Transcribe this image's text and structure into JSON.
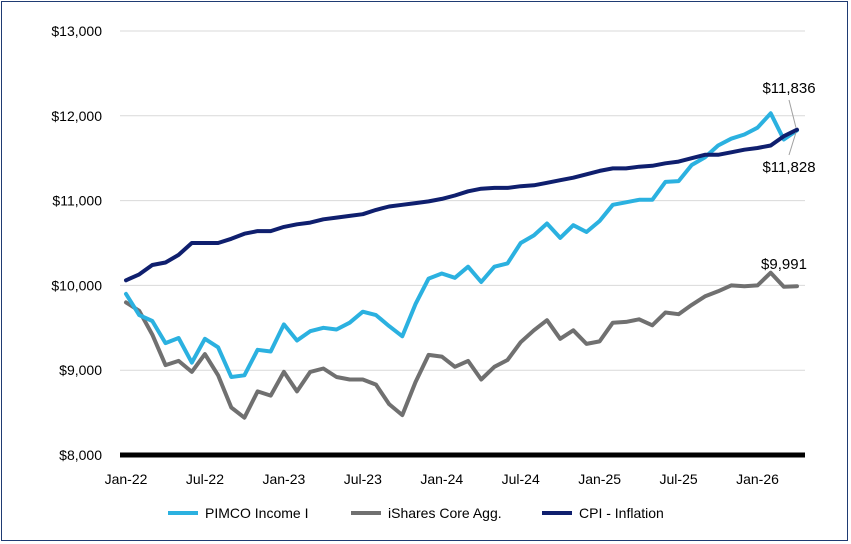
{
  "chart_data": {
    "type": "line",
    "x": [
      "Jan-22",
      "Feb-22",
      "Mar-22",
      "Apr-22",
      "May-22",
      "Jun-22",
      "Jul-22",
      "Aug-22",
      "Sep-22",
      "Oct-22",
      "Nov-22",
      "Dec-22",
      "Jan-23",
      "Feb-23",
      "Mar-23",
      "Apr-23",
      "May-23",
      "Jun-23",
      "Jul-23",
      "Aug-23",
      "Sep-23",
      "Oct-23",
      "Nov-23",
      "Dec-23",
      "Jan-24",
      "Feb-24",
      "Mar-24",
      "Apr-24",
      "May-24",
      "Jun-24",
      "Jul-24",
      "Aug-24",
      "Sep-24",
      "Oct-24",
      "Nov-24",
      "Dec-24",
      "Jan-25",
      "Feb-25",
      "Mar-25",
      "Apr-25",
      "May-25",
      "Jun-25",
      "Jul-25",
      "Aug-25",
      "Sep-25",
      "Oct-25",
      "Nov-25",
      "Dec-25",
      "Jan-26",
      "Feb-26",
      "Mar-26",
      "Apr-26"
    ],
    "xtick_labels": [
      "Jan-22",
      "Jul-22",
      "Jan-23",
      "Jul-23",
      "Jan-24",
      "Jul-24",
      "Jan-25",
      "Jul-25",
      "Jan-26"
    ],
    "ytick_labels": [
      "$8,000",
      "$9,000",
      "$10,000",
      "$11,000",
      "$12,000",
      "$13,000"
    ],
    "yticks": [
      8000,
      9000,
      10000,
      11000,
      12000,
      13000
    ],
    "ylim": [
      8000,
      13000
    ],
    "grid": "horizontal",
    "legend_position": "bottom",
    "series": [
      {
        "name": "PIMCO Income I",
        "color": "#2bb1e0",
        "values": [
          9900,
          9650,
          9580,
          9320,
          9380,
          9090,
          9370,
          9270,
          8920,
          8940,
          9240,
          9220,
          9540,
          9350,
          9460,
          9500,
          9480,
          9560,
          9690,
          9650,
          9520,
          9400,
          9780,
          10080,
          10140,
          10090,
          10220,
          10040,
          10220,
          10260,
          10500,
          10590,
          10730,
          10560,
          10710,
          10630,
          10760,
          10950,
          10980,
          11010,
          11010,
          11220,
          11230,
          11420,
          11510,
          11650,
          11730,
          11780,
          11860,
          12030,
          11720,
          11828
        ]
      },
      {
        "name": "iShares Core Agg.",
        "color": "#707070",
        "values": [
          9800,
          9700,
          9420,
          9060,
          9110,
          8980,
          9190,
          8940,
          8560,
          8440,
          8750,
          8700,
          8980,
          8750,
          8980,
          9020,
          8920,
          8890,
          8890,
          8830,
          8600,
          8470,
          8860,
          9180,
          9160,
          9040,
          9110,
          8890,
          9040,
          9120,
          9330,
          9470,
          9590,
          9370,
          9470,
          9310,
          9340,
          9560,
          9570,
          9600,
          9530,
          9680,
          9660,
          9770,
          9870,
          9930,
          10000,
          9990,
          10000,
          10150,
          9985,
          9991
        ]
      },
      {
        "name": "CPI - Inflation",
        "color": "#0f1f6e",
        "values": [
          10060,
          10130,
          10240,
          10270,
          10360,
          10500,
          10500,
          10500,
          10550,
          10610,
          10640,
          10640,
          10690,
          10720,
          10740,
          10780,
          10800,
          10820,
          10840,
          10890,
          10930,
          10950,
          10970,
          10990,
          11020,
          11060,
          11110,
          11140,
          11150,
          11150,
          11170,
          11180,
          11210,
          11240,
          11270,
          11310,
          11350,
          11380,
          11380,
          11400,
          11410,
          11440,
          11460,
          11500,
          11540,
          11540,
          11570,
          11600,
          11620,
          11650,
          11760,
          11836
        ]
      }
    ],
    "annotations": [
      "$11,836",
      "$11,828",
      "$9,991"
    ]
  }
}
